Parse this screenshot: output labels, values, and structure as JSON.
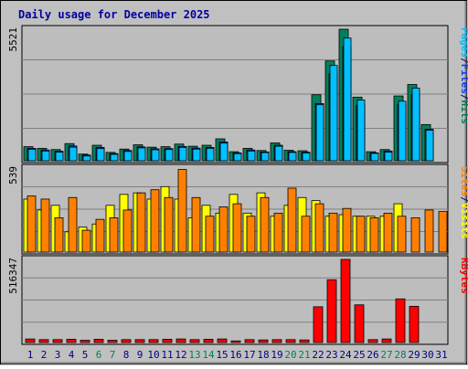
{
  "title": "Daily usage for December 2025",
  "colors": {
    "background": "#c0c0c0",
    "plot_bg": "#bdbdbd",
    "title": "#0000a0",
    "hits": "#00805c",
    "files": "#0040ff",
    "pages": "#00c0ff",
    "visits": "#ffff00",
    "sites": "#ff8000",
    "kbytes": "#ff0000",
    "weekend": "#00805c",
    "weekday": "#000080"
  },
  "chart_data": [
    {
      "type": "bar",
      "panel": "hits-files-pages",
      "ymax_label": "5521",
      "ymax": 5521,
      "side_label": [
        "Pages",
        "/",
        "Files",
        "/",
        "Hits"
      ],
      "categories": [
        "1",
        "2",
        "3",
        "4",
        "5",
        "6",
        "7",
        "8",
        "9",
        "10",
        "11",
        "12",
        "13",
        "14",
        "15",
        "16",
        "17",
        "18",
        "19",
        "20",
        "21",
        "22",
        "23",
        "24",
        "25",
        "26",
        "27",
        "28",
        "29",
        "30",
        "31"
      ],
      "series": [
        {
          "name": "Hits",
          "values": [
            590,
            520,
            470,
            720,
            280,
            650,
            350,
            490,
            670,
            570,
            590,
            700,
            610,
            650,
            920,
            380,
            520,
            430,
            750,
            440,
            420,
            2770,
            4190,
            5521,
            2670,
            380,
            470,
            2720,
            3200,
            1520,
            0
          ]
        },
        {
          "name": "Files",
          "values": [
            520,
            450,
            400,
            620,
            240,
            560,
            300,
            430,
            580,
            500,
            510,
            600,
            530,
            560,
            790,
            330,
            450,
            370,
            650,
            380,
            360,
            2400,
            3650,
            4800,
            2330,
            330,
            410,
            2360,
            2790,
            1320,
            0
          ]
        },
        {
          "name": "Pages",
          "values": [
            480,
            410,
            360,
            570,
            200,
            510,
            270,
            390,
            540,
            460,
            470,
            560,
            490,
            520,
            740,
            300,
            410,
            340,
            610,
            350,
            330,
            2350,
            4000,
            5150,
            2550,
            310,
            360,
            2500,
            3050,
            1280,
            0
          ]
        }
      ]
    },
    {
      "type": "bar",
      "panel": "visits-sites",
      "ymax_label": "539",
      "ymax": 539,
      "side_label": [
        "Sites",
        "/",
        "Visits"
      ],
      "categories": [
        "1",
        "2",
        "3",
        "4",
        "5",
        "6",
        "7",
        "8",
        "9",
        "10",
        "11",
        "12",
        "13",
        "14",
        "15",
        "16",
        "17",
        "18",
        "19",
        "20",
        "21",
        "22",
        "23",
        "24",
        "25",
        "26",
        "27",
        "28",
        "29",
        "30",
        "31"
      ],
      "series": [
        {
          "name": "Visits",
          "values": [
            340,
            270,
            300,
            130,
            160,
            180,
            300,
            370,
            380,
            340,
            420,
            340,
            220,
            300,
            250,
            370,
            250,
            380,
            230,
            300,
            350,
            330,
            230,
            240,
            230,
            230,
            230,
            310,
            0,
            0,
            0
          ]
        },
        {
          "name": "Sites",
          "values": [
            360,
            340,
            220,
            350,
            140,
            210,
            220,
            270,
            380,
            400,
            350,
            530,
            350,
            230,
            290,
            310,
            230,
            350,
            250,
            410,
            230,
            310,
            250,
            280,
            230,
            220,
            250,
            230,
            220,
            270,
            260
          ]
        }
      ]
    },
    {
      "type": "bar",
      "panel": "kbytes",
      "ymax_label": "516347",
      "ymax": 516347,
      "side_label": [
        "KBytes"
      ],
      "categories": [
        "1",
        "2",
        "3",
        "4",
        "5",
        "6",
        "7",
        "8",
        "9",
        "10",
        "11",
        "12",
        "13",
        "14",
        "15",
        "16",
        "17",
        "18",
        "19",
        "20",
        "21",
        "22",
        "23",
        "24",
        "25",
        "26",
        "27",
        "28",
        "29",
        "30",
        "31"
      ],
      "series": [
        {
          "name": "KBytes",
          "values": [
            22000,
            18000,
            18000,
            20000,
            14000,
            20000,
            14000,
            18000,
            18000,
            18000,
            20000,
            22000,
            18000,
            20000,
            22000,
            10000,
            18000,
            16000,
            18000,
            18000,
            16000,
            222000,
            390000,
            516347,
            234000,
            18000,
            22000,
            271000,
            225000,
            0,
            0
          ]
        }
      ]
    }
  ],
  "x_axis": {
    "days": [
      "1",
      "2",
      "3",
      "4",
      "5",
      "6",
      "7",
      "8",
      "9",
      "10",
      "11",
      "12",
      "13",
      "14",
      "15",
      "16",
      "17",
      "18",
      "19",
      "20",
      "21",
      "22",
      "23",
      "24",
      "25",
      "26",
      "27",
      "28",
      "29",
      "30",
      "31"
    ],
    "weekend_days": [
      "6",
      "7",
      "13",
      "14",
      "20",
      "21",
      "27",
      "28"
    ]
  }
}
